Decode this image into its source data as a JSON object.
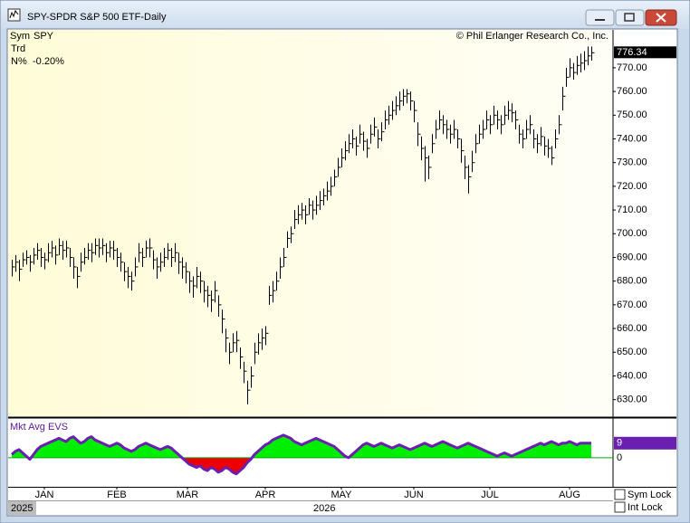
{
  "window_title": "SPY-SPDR S&P 500 ETF-Daily",
  "info": {
    "sym_label": "Sym",
    "sym": "SPY",
    "trd_label": "Trd",
    "n_label": "N%",
    "n_value": "-0.20%"
  },
  "copyright": "© Phil Erlanger Research Co., Inc.",
  "years": [
    "2025",
    "2026"
  ],
  "controls": {
    "sym_lock": "Sym Lock",
    "int_lock": "Int Lock"
  },
  "chart_data": {
    "type": "ohlc",
    "color": "#000000",
    "xlim": [
      -1,
      166
    ],
    "xticks": [
      {
        "value": 9,
        "label": "JAN"
      },
      {
        "value": 29,
        "label": "FEB"
      },
      {
        "value": 48.5,
        "label": "MAR"
      },
      {
        "value": 70,
        "label": "APR"
      },
      {
        "value": 91,
        "label": "MAY"
      },
      {
        "value": 111,
        "label": "JUN"
      },
      {
        "value": 132,
        "label": "JUL"
      },
      {
        "value": 154,
        "label": "AUG"
      }
    ],
    "ylim": [
      623,
      786
    ],
    "yticks": [
      {
        "value": 630,
        "label": "630.00"
      },
      {
        "value": 640,
        "label": "640.00"
      },
      {
        "value": 650,
        "label": "650.00"
      },
      {
        "value": 660,
        "label": "660.00"
      },
      {
        "value": 670,
        "label": "670.00"
      },
      {
        "value": 680,
        "label": "680.00"
      },
      {
        "value": 690,
        "label": "690.00"
      },
      {
        "value": 700,
        "label": "700.00"
      },
      {
        "value": 710,
        "label": "710.00"
      },
      {
        "value": 720,
        "label": "720.00"
      },
      {
        "value": 730,
        "label": "730.00"
      },
      {
        "value": 740,
        "label": "740.00"
      },
      {
        "value": 750,
        "label": "750.00"
      },
      {
        "value": 760,
        "label": "760.00"
      },
      {
        "value": 770,
        "label": "770.00"
      }
    ],
    "bars": [
      [
        689,
        682,
        686
      ],
      [
        691,
        684,
        688
      ],
      [
        689,
        680,
        685
      ],
      [
        692,
        686,
        689
      ],
      [
        693,
        687,
        690
      ],
      [
        691,
        684,
        688
      ],
      [
        694,
        687,
        691
      ],
      [
        696,
        689,
        693
      ],
      [
        694,
        686,
        690
      ],
      [
        692,
        685,
        689
      ],
      [
        696,
        688,
        692
      ],
      [
        697,
        690,
        694
      ],
      [
        695,
        687,
        691
      ],
      [
        698,
        691,
        695
      ],
      [
        697,
        689,
        693
      ],
      [
        697,
        690,
        694
      ],
      [
        694,
        686,
        690
      ],
      [
        690,
        681,
        686
      ],
      [
        686,
        677,
        682
      ],
      [
        692,
        684,
        688
      ],
      [
        694,
        687,
        690
      ],
      [
        696,
        689,
        693
      ],
      [
        696,
        688,
        692
      ],
      [
        698,
        691,
        695
      ],
      [
        698,
        690,
        694
      ],
      [
        698,
        691,
        695
      ],
      [
        696,
        688,
        692
      ],
      [
        697,
        690,
        694
      ],
      [
        697,
        689,
        693
      ],
      [
        694,
        686,
        690
      ],
      [
        692,
        684,
        688
      ],
      [
        688,
        680,
        684
      ],
      [
        686,
        677,
        682
      ],
      [
        684,
        676,
        680
      ],
      [
        690,
        682,
        686
      ],
      [
        696,
        688,
        692
      ],
      [
        694,
        686,
        690
      ],
      [
        697,
        690,
        694
      ],
      [
        698,
        690,
        694
      ],
      [
        693,
        685,
        689
      ],
      [
        690,
        681,
        686
      ],
      [
        692,
        684,
        688
      ],
      [
        694,
        686,
        690
      ],
      [
        696,
        689,
        693
      ],
      [
        694,
        686,
        690
      ],
      [
        696,
        688,
        692
      ],
      [
        692,
        683,
        688
      ],
      [
        690,
        681,
        686
      ],
      [
        688,
        679,
        684
      ],
      [
        684,
        675,
        680
      ],
      [
        682,
        673,
        678
      ],
      [
        686,
        677,
        682
      ],
      [
        684,
        675,
        680
      ],
      [
        680,
        671,
        676
      ],
      [
        678,
        669,
        674
      ],
      [
        676,
        667,
        672
      ],
      [
        680,
        671,
        676
      ],
      [
        674,
        665,
        670
      ],
      [
        668,
        658,
        664
      ],
      [
        660,
        650,
        656
      ],
      [
        654,
        645,
        650
      ],
      [
        658,
        650,
        654
      ],
      [
        659,
        650,
        655
      ],
      [
        652,
        643,
        648
      ],
      [
        646,
        637,
        642
      ],
      [
        638,
        628,
        634
      ],
      [
        644,
        635,
        640
      ],
      [
        654,
        645,
        650
      ],
      [
        658,
        649,
        654
      ],
      [
        660,
        651,
        656
      ],
      [
        661,
        653,
        658
      ],
      [
        678,
        670,
        674
      ],
      [
        680,
        671,
        676
      ],
      [
        684,
        676,
        680
      ],
      [
        690,
        681,
        686
      ],
      [
        694,
        686,
        690
      ],
      [
        701,
        694,
        698
      ],
      [
        703,
        696,
        700
      ],
      [
        710,
        702,
        706
      ],
      [
        712,
        704,
        708
      ],
      [
        713,
        706,
        710
      ],
      [
        712,
        704,
        708
      ],
      [
        715,
        708,
        712
      ],
      [
        714,
        706,
        710
      ],
      [
        716,
        708,
        712
      ],
      [
        718,
        710,
        714
      ],
      [
        719,
        712,
        716
      ],
      [
        722,
        714,
        718
      ],
      [
        724,
        716,
        720
      ],
      [
        727,
        720,
        724
      ],
      [
        732,
        724,
        728
      ],
      [
        736,
        728,
        732
      ],
      [
        739,
        731,
        735
      ],
      [
        742,
        734,
        738
      ],
      [
        744,
        736,
        740
      ],
      [
        741,
        733,
        737
      ],
      [
        746,
        738,
        742
      ],
      [
        743,
        735,
        739
      ],
      [
        740,
        732,
        736
      ],
      [
        746,
        738,
        742
      ],
      [
        749,
        741,
        745
      ],
      [
        744,
        736,
        740
      ],
      [
        747,
        739,
        743
      ],
      [
        752,
        744,
        748
      ],
      [
        754,
        746,
        750
      ],
      [
        756,
        748,
        752
      ],
      [
        758,
        750,
        754
      ],
      [
        760,
        752,
        756
      ],
      [
        761,
        754,
        758
      ],
      [
        761,
        755,
        759
      ],
      [
        760,
        752,
        756
      ],
      [
        756,
        747,
        752
      ],
      [
        747,
        737,
        742
      ],
      [
        741,
        731,
        736
      ],
      [
        737,
        722,
        732
      ],
      [
        733,
        723,
        728
      ],
      [
        742,
        734,
        738
      ],
      [
        748,
        740,
        744
      ],
      [
        752,
        744,
        748
      ],
      [
        750,
        742,
        746
      ],
      [
        748,
        740,
        744
      ],
      [
        746,
        738,
        742
      ],
      [
        748,
        740,
        744
      ],
      [
        744,
        736,
        740
      ],
      [
        740,
        730,
        735
      ],
      [
        733,
        723,
        728
      ],
      [
        729,
        717,
        724
      ],
      [
        735,
        726,
        730
      ],
      [
        742,
        734,
        738
      ],
      [
        746,
        738,
        742
      ],
      [
        748,
        740,
        744
      ],
      [
        752,
        744,
        748
      ],
      [
        750,
        742,
        746
      ],
      [
        754,
        746,
        750
      ],
      [
        752,
        744,
        748
      ],
      [
        750,
        742,
        746
      ],
      [
        754,
        746,
        750
      ],
      [
        756,
        748,
        752
      ],
      [
        755,
        747,
        751
      ],
      [
        752,
        744,
        748
      ],
      [
        746,
        738,
        742
      ],
      [
        744,
        736,
        740
      ],
      [
        748,
        740,
        744
      ],
      [
        750,
        742,
        746
      ],
      [
        744,
        736,
        740
      ],
      [
        742,
        734,
        738
      ],
      [
        745,
        737,
        741
      ],
      [
        741,
        733,
        737
      ],
      [
        740,
        732,
        736
      ],
      [
        737,
        729,
        732
      ],
      [
        744,
        736,
        740
      ],
      [
        750,
        742,
        746
      ],
      [
        762,
        752,
        758
      ],
      [
        770,
        762,
        766
      ],
      [
        774,
        766,
        770
      ],
      [
        772,
        765,
        768
      ],
      [
        775,
        767,
        771
      ],
      [
        776,
        768,
        772
      ],
      [
        777,
        769,
        773
      ],
      [
        779,
        771,
        775
      ],
      [
        779,
        773,
        776.34
      ]
    ],
    "indicator": {
      "type": "area",
      "title": "Mkt Avg EVS",
      "line_color": "#6a1fb0",
      "positive_color": "#00ee00",
      "negative_color": "#ee0000",
      "ylim": [
        -18,
        24
      ],
      "yticks": [
        0
      ],
      "values": [
        2,
        4,
        5,
        3,
        1,
        -1,
        2,
        5,
        7,
        8,
        9,
        10,
        11,
        12,
        11,
        10,
        12,
        13,
        11,
        9,
        10,
        12,
        13,
        11,
        10,
        9,
        8,
        7,
        8,
        9,
        8,
        6,
        5,
        4,
        5,
        7,
        8,
        9,
        8,
        7,
        6,
        5,
        6,
        7,
        6,
        4,
        2,
        0,
        -2,
        -4,
        -5,
        -6,
        -5,
        -7,
        -8,
        -6,
        -7,
        -9,
        -8,
        -6,
        -7,
        -9,
        -10,
        -8,
        -6,
        -3,
        -1,
        2,
        4,
        6,
        8,
        9,
        11,
        12,
        13,
        14,
        13,
        12,
        10,
        9,
        8,
        9,
        10,
        11,
        12,
        11,
        10,
        9,
        8,
        7,
        5,
        3,
        1,
        0,
        2,
        4,
        6,
        8,
        9,
        8,
        7,
        8,
        9,
        8,
        7,
        6,
        7,
        8,
        7,
        6,
        5,
        6,
        7,
        8,
        9,
        8,
        7,
        8,
        9,
        10,
        9,
        8,
        7,
        6,
        7,
        8,
        9,
        8,
        7,
        6,
        5,
        4,
        3,
        2,
        1,
        2,
        3,
        2,
        1,
        2,
        3,
        4,
        5,
        6,
        7,
        8,
        9,
        8,
        9,
        10,
        9,
        8,
        9,
        9,
        10,
        9,
        8,
        9,
        9,
        9,
        9
      ]
    }
  }
}
